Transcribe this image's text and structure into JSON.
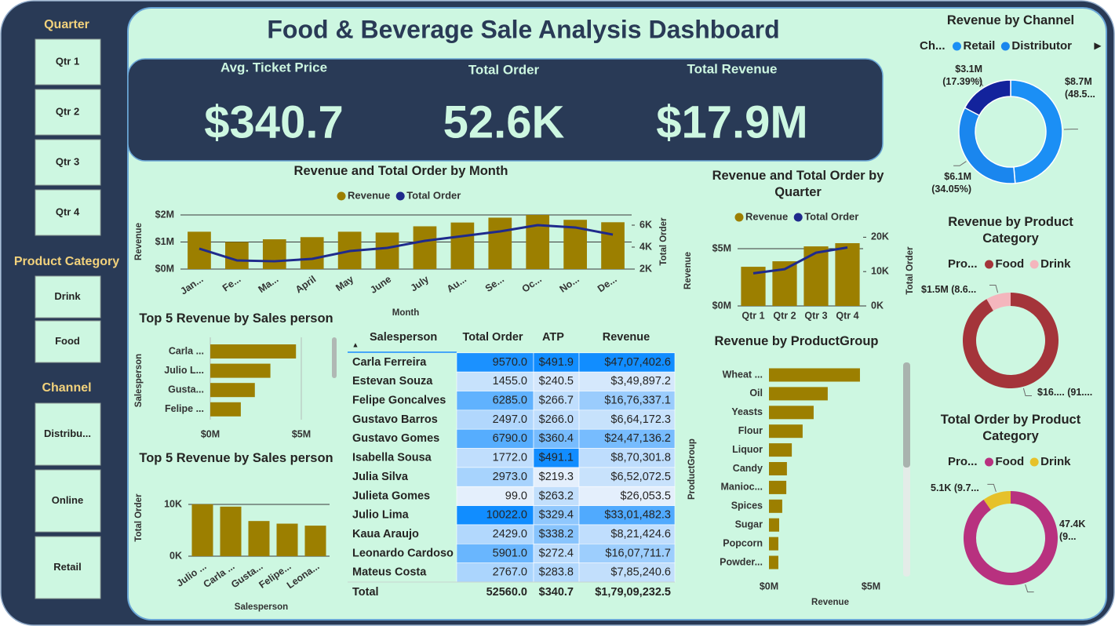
{
  "header": {
    "title": "Food & Beverage Sale Analysis Dashboard"
  },
  "slicers": [
    {
      "title": "Quarter",
      "items": [
        "Qtr 1",
        "Qtr 2",
        "Qtr 3",
        "Qtr 4"
      ]
    },
    {
      "title": "Product Category",
      "items": [
        "Drink",
        "Food"
      ]
    },
    {
      "title": "Channel",
      "items": [
        "Distribu...",
        "Online",
        "Retail"
      ]
    }
  ],
  "kpis": [
    {
      "label": "Avg. Ticket Price",
      "value": "$340.7"
    },
    {
      "label": "Total Order",
      "value": "52.6K"
    },
    {
      "label": "Total Revenue",
      "value": "$17.9M"
    }
  ],
  "chart_data": [
    {
      "type": "combo",
      "title": "Revenue and Total Order by Month",
      "categories": [
        "Jan...",
        "Fe...",
        "Ma...",
        "April",
        "May",
        "June",
        "July",
        "Au...",
        "Se...",
        "Oc...",
        "No...",
        "De..."
      ],
      "series": [
        {
          "name": "Revenue",
          "type": "bar",
          "color": "#9c7f00",
          "values": [
            1380000,
            1000000,
            1100000,
            1180000,
            1380000,
            1350000,
            1580000,
            1720000,
            1900000,
            2000000,
            1820000,
            1730000
          ]
        },
        {
          "name": "Total Order",
          "type": "line",
          "axis": "y2",
          "color": "#1f2a8c",
          "values": [
            3860,
            2790,
            2710,
            2930,
            3640,
            3930,
            4570,
            5000,
            5430,
            6000,
            5790,
            5140
          ]
        }
      ],
      "ylim": [
        0,
        2000000
      ],
      "yticks": [
        {
          "value": 0,
          "label": "$0M"
        },
        {
          "value": 1000000,
          "label": "$1M"
        },
        {
          "value": 2000000,
          "label": "$2M"
        }
      ],
      "y2lim": [
        2000,
        6930
      ],
      "y2ticks": [
        {
          "value": 2000,
          "label": "2K"
        },
        {
          "value": 4000,
          "label": "4K"
        },
        {
          "value": 6000,
          "label": "6K"
        }
      ],
      "xlabel": "Month",
      "ylabel": "Revenue",
      "y2label": "Total Order",
      "grid": true
    },
    {
      "type": "combo",
      "title": "Revenue and Total Order by Quarter",
      "categories": [
        "Qtr 1",
        "Qtr 2",
        "Qtr 3",
        "Qtr 4"
      ],
      "series": [
        {
          "name": "Revenue",
          "type": "bar",
          "color": "#9c7f00",
          "values": [
            3420000,
            3900000,
            5200000,
            5480000
          ]
        },
        {
          "name": "Total Order",
          "type": "line",
          "axis": "y2",
          "color": "#1f2a8c",
          "values": [
            9500,
            10700,
            15500,
            17000
          ]
        }
      ],
      "ylim": [
        0,
        6000000
      ],
      "yticks": [
        {
          "value": 0,
          "label": "$0M"
        },
        {
          "value": 5000000,
          "label": "$5M"
        }
      ],
      "y2lim": [
        0,
        20000
      ],
      "y2ticks": [
        {
          "value": 0,
          "label": "0K"
        },
        {
          "value": 10000,
          "label": "10K"
        },
        {
          "value": 20000,
          "label": "20K"
        }
      ],
      "ylabel": "Revenue",
      "y2label": "Total Order",
      "grid": true
    },
    {
      "type": "hbar",
      "title": "Top 5 Revenue by Sales person",
      "categories": [
        "Carla ...",
        "Julio L...",
        "Gusta...",
        "Felipe ..."
      ],
      "values": [
        4707403,
        3301482,
        2447136,
        1676337
      ],
      "color": "#9c7f00",
      "xlim": [
        0,
        5000000
      ],
      "xticks": [
        {
          "value": 0,
          "label": "$0M"
        },
        {
          "value": 5000000,
          "label": "$5M"
        }
      ],
      "ylabel": "Salesperson",
      "grid": true
    },
    {
      "type": "bar",
      "title": "Top 5 Revenue by Sales person",
      "categories": [
        "Julio ...",
        "Carla ...",
        "Gusta...",
        "Felipe...",
        "Leona..."
      ],
      "values": [
        10022,
        9570,
        6790,
        6285,
        5901
      ],
      "color": "#9c7f00",
      "ylim": [
        0,
        12000
      ],
      "yticks": [
        {
          "value": 0,
          "label": "0K"
        },
        {
          "value": 10000,
          "label": "10K"
        }
      ],
      "xlabel": "Salesperson",
      "ylabel": "Total Order",
      "grid": true
    },
    {
      "type": "hbar",
      "title": "Revenue by ProductGroup",
      "categories": [
        "Wheat ...",
        "Oil",
        "Yeasts",
        "Flour",
        "Liquor",
        "Candy",
        "Manioc...",
        "Spices",
        "Sugar",
        "Popcorn",
        "Powder..."
      ],
      "values": [
        4460000,
        2880000,
        2190000,
        1650000,
        1120000,
        880000,
        850000,
        650000,
        500000,
        460000,
        460000
      ],
      "color": "#9c7f00",
      "xlim": [
        0,
        5000000
      ],
      "xticks": [
        {
          "value": 0,
          "label": "$0M"
        },
        {
          "value": 5000000,
          "label": "$5M"
        }
      ],
      "xlabel": "Revenue",
      "ylabel": "ProductGroup",
      "grid": false
    },
    {
      "type": "donut",
      "title": "Revenue by Channel",
      "legend_title": "Ch...",
      "categories": [
        "Retail",
        "Distributor",
        null
      ],
      "values": [
        8700000,
        6100000,
        3100000
      ],
      "value_labels": [
        "$8.7M (48.5...",
        "$6.1M (34.05%)",
        "$3.1M (17.39%)"
      ],
      "colors": [
        "#1b8ff5",
        "#1a86ee",
        "#13239c"
      ]
    },
    {
      "type": "donut",
      "title": "Revenue by Product Category",
      "legend_title": "Pro...",
      "categories": [
        "Food",
        "Drink"
      ],
      "values": [
        16400000,
        1500000
      ],
      "value_labels": [
        "$16.... (91....",
        "$1.5M (8.6..."
      ],
      "colors": [
        "#a4343a",
        "#f4b6bd"
      ]
    },
    {
      "type": "donut",
      "title": "Total Order by Product Category",
      "legend_title": "Pro...",
      "categories": [
        "Food",
        "Drink"
      ],
      "values": [
        47400,
        5100
      ],
      "value_labels": [
        "47.4K (9...",
        "5.1K (9.7..."
      ],
      "colors": [
        "#b8317f",
        "#e6c12a"
      ]
    }
  ],
  "table": {
    "columns": [
      "Salesperson",
      "Total Order",
      "ATP",
      "Revenue"
    ],
    "rows": [
      [
        "Carla Ferreira",
        "9570.0",
        "$491.9",
        "$47,07,402.6"
      ],
      [
        "Estevan Souza",
        "1455.0",
        "$240.5",
        "$3,49,897.2"
      ],
      [
        "Felipe Goncalves",
        "6285.0",
        "$266.7",
        "$16,76,337.1"
      ],
      [
        "Gustavo Barros",
        "2497.0",
        "$266.0",
        "$6,64,172.3"
      ],
      [
        "Gustavo Gomes",
        "6790.0",
        "$360.4",
        "$24,47,136.2"
      ],
      [
        "Isabella Sousa",
        "1772.0",
        "$491.1",
        "$8,70,301.8"
      ],
      [
        "Julia Silva",
        "2973.0",
        "$219.3",
        "$6,52,072.5"
      ],
      [
        "Julieta Gomes",
        "99.0",
        "$263.2",
        "$26,053.5"
      ],
      [
        "Julio Lima",
        "10022.0",
        "$329.4",
        "$33,01,482.3"
      ],
      [
        "Kaua Araujo",
        "2429.0",
        "$338.2",
        "$8,21,424.6"
      ],
      [
        "Leonardo Cardoso",
        "5901.0",
        "$272.4",
        "$16,07,711.7"
      ],
      [
        "Mateus Costa",
        "2767.0",
        "$283.8",
        "$7,85,240.6"
      ]
    ],
    "total": [
      "Total",
      "52560.0",
      "$340.7",
      "$1,79,09,232.5"
    ]
  }
}
